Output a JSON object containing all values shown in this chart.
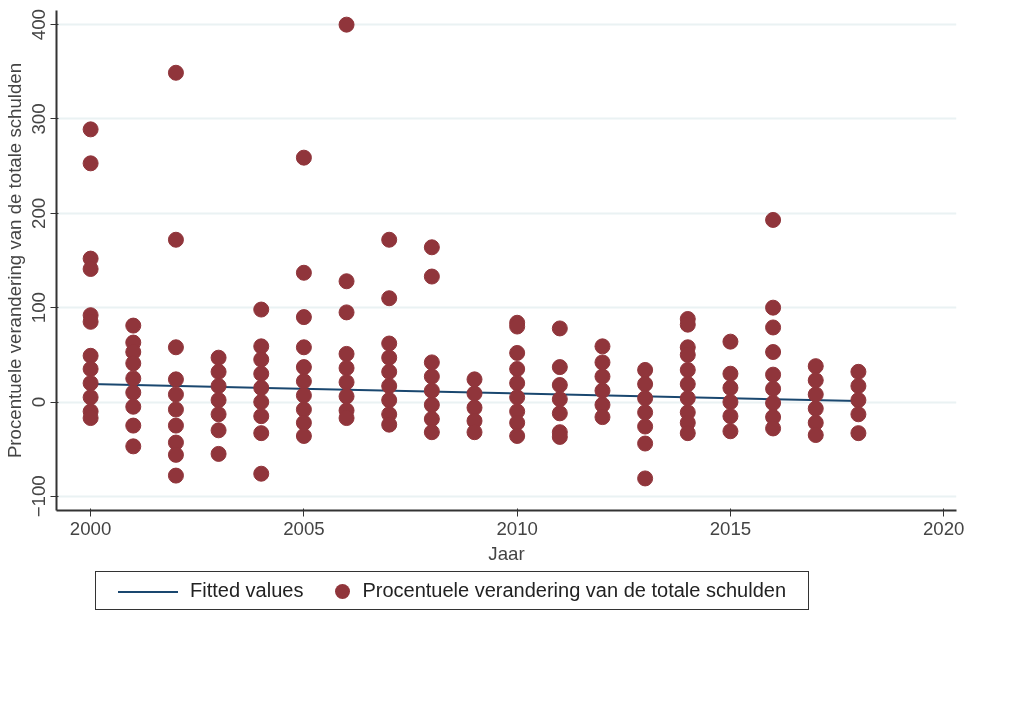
{
  "chart_data": {
    "type": "scatter",
    "xlabel": "Jaar",
    "ylabel": "Procentuele verandering van de totale schulden",
    "xlim": [
      1999.2,
      2020.3
    ],
    "ylim": [
      -115,
      415
    ],
    "xticks": [
      2000,
      2005,
      2010,
      2015,
      2020
    ],
    "yticks": [
      -100,
      0,
      100,
      200,
      300,
      400
    ],
    "grid": "y",
    "legend": "bottom",
    "series": [
      {
        "name": "Fitted values",
        "type": "line",
        "color": "#1a476f",
        "x": [
          2000,
          2018
        ],
        "values": [
          19,
          1
        ]
      },
      {
        "name": "Procentuele verandering van de totale schulden",
        "marker": "circle",
        "color": "#90353b",
        "x": [
          2000,
          2000,
          2000,
          2000,
          2000,
          2000,
          2000,
          2000,
          2000,
          2000,
          2000,
          2000,
          2001,
          2001,
          2001,
          2001,
          2001,
          2001,
          2001,
          2001,
          2001,
          2002,
          2002,
          2002,
          2002,
          2002,
          2002,
          2002,
          2002,
          2002,
          2002,
          2003,
          2003,
          2003,
          2003,
          2003,
          2003,
          2003,
          2004,
          2004,
          2004,
          2004,
          2004,
          2004,
          2004,
          2004,
          2004,
          2005,
          2005,
          2005,
          2005,
          2005,
          2005,
          2005,
          2005,
          2005,
          2005,
          2006,
          2006,
          2006,
          2006,
          2006,
          2006,
          2006,
          2006,
          2006,
          2007,
          2007,
          2007,
          2007,
          2007,
          2007,
          2007,
          2007,
          2007,
          2008,
          2008,
          2008,
          2008,
          2008,
          2008,
          2008,
          2008,
          2009,
          2009,
          2009,
          2009,
          2009,
          2010,
          2010,
          2010,
          2010,
          2010,
          2010,
          2010,
          2010,
          2010,
          2011,
          2011,
          2011,
          2011,
          2011,
          2011,
          2011,
          2012,
          2012,
          2012,
          2012,
          2012,
          2012,
          2013,
          2013,
          2013,
          2013,
          2013,
          2013,
          2013,
          2014,
          2014,
          2014,
          2014,
          2014,
          2014,
          2014,
          2014,
          2014,
          2014,
          2015,
          2015,
          2015,
          2015,
          2015,
          2015,
          2016,
          2016,
          2016,
          2016,
          2016,
          2016,
          2016,
          2016,
          2016,
          2017,
          2017,
          2017,
          2017,
          2017,
          2017,
          2018,
          2018,
          2018,
          2018,
          2018
        ],
        "values": [
          289,
          253,
          152,
          141,
          92,
          85,
          49,
          35,
          20,
          5,
          -10,
          -17,
          81,
          63,
          53,
          41,
          25,
          10,
          -5,
          -25,
          -47,
          349,
          172,
          58,
          24,
          8,
          -8,
          -25,
          -43,
          -56,
          -78,
          47,
          32,
          17,
          2,
          -13,
          -30,
          -55,
          98,
          59,
          45,
          30,
          15,
          0,
          -15,
          -33,
          -76,
          259,
          137,
          90,
          58,
          37,
          22,
          7,
          -8,
          -22,
          -36,
          400,
          128,
          95,
          51,
          36,
          21,
          6,
          -9,
          -17,
          172,
          110,
          62,
          47,
          32,
          17,
          2,
          -13,
          -24,
          164,
          133,
          42,
          27,
          12,
          -3,
          -18,
          -32,
          24,
          9,
          -6,
          -20,
          -32,
          84,
          80,
          52,
          35,
          20,
          5,
          -10,
          -22,
          -36,
          78,
          37,
          18,
          3,
          -12,
          -32,
          -37,
          59,
          42,
          27,
          12,
          -3,
          -16,
          34,
          19,
          4,
          -11,
          -26,
          -44,
          -81,
          88,
          82,
          58,
          50,
          34,
          19,
          4,
          -11,
          -22,
          -33,
          64,
          30,
          15,
          0,
          -15,
          -31,
          193,
          100,
          79,
          53,
          29,
          14,
          -1,
          -16,
          -28,
          38,
          23,
          8,
          -7,
          -22,
          -35,
          32,
          17,
          2,
          -13,
          -33
        ]
      }
    ]
  }
}
